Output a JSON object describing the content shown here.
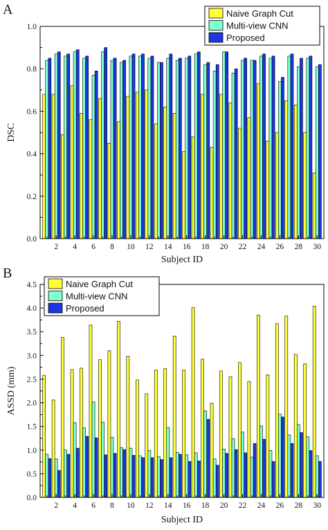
{
  "chart_data": [
    {
      "type": "bar",
      "panel_label": "A",
      "xlabel": "Subject ID",
      "ylabel": "DSC",
      "ylim": [
        0,
        1.0
      ],
      "yticks": [
        0.0,
        0.2,
        0.4,
        0.6,
        0.8,
        1.0
      ],
      "yticks_labels": [
        "0.0",
        "0.2",
        "0.4",
        "0.6",
        "0.8",
        "1.0"
      ],
      "categories": [
        1,
        2,
        3,
        4,
        5,
        6,
        7,
        8,
        9,
        10,
        11,
        12,
        13,
        14,
        15,
        16,
        17,
        18,
        19,
        20,
        21,
        22,
        23,
        24,
        25,
        26,
        27,
        28,
        29,
        30
      ],
      "xtick_labels": [
        "2",
        "4",
        "6",
        "8",
        "10",
        "12",
        "14",
        "16",
        "18",
        "20",
        "22",
        "24",
        "26",
        "28",
        "30"
      ],
      "legend_position": "top-right",
      "series": [
        {
          "name": "Naive Graph Cut",
          "color": "#ffff33",
          "values": [
            0.68,
            0.68,
            0.49,
            0.72,
            0.59,
            0.56,
            0.66,
            0.45,
            0.55,
            0.67,
            0.69,
            0.7,
            0.54,
            0.62,
            0.59,
            0.41,
            0.48,
            0.68,
            0.43,
            0.68,
            0.64,
            0.52,
            0.57,
            0.73,
            0.46,
            0.5,
            0.65,
            0.63,
            0.5,
            0.31
          ]
        },
        {
          "name": "Multi-view CNN",
          "color": "#7fffd4",
          "values": [
            0.84,
            0.87,
            0.86,
            0.88,
            0.85,
            0.77,
            0.88,
            0.84,
            0.83,
            0.86,
            0.86,
            0.85,
            0.83,
            0.85,
            0.84,
            0.85,
            0.87,
            0.82,
            0.79,
            0.88,
            0.78,
            0.84,
            0.84,
            0.86,
            0.85,
            0.74,
            0.86,
            0.81,
            0.85,
            0.81
          ]
        },
        {
          "name": "Proposed",
          "color": "#1a37e0",
          "values": [
            0.85,
            0.88,
            0.87,
            0.89,
            0.86,
            0.79,
            0.9,
            0.85,
            0.84,
            0.87,
            0.87,
            0.86,
            0.83,
            0.87,
            0.85,
            0.86,
            0.88,
            0.83,
            0.82,
            0.88,
            0.8,
            0.85,
            0.84,
            0.87,
            0.86,
            0.76,
            0.87,
            0.85,
            0.86,
            0.82
          ]
        }
      ]
    },
    {
      "type": "bar",
      "panel_label": "B",
      "xlabel": "Subject ID",
      "ylabel": "ASSD (mm)",
      "ylim": [
        0,
        4.5
      ],
      "yticks": [
        0.0,
        0.5,
        1.0,
        1.5,
        2.0,
        2.5,
        3.0,
        3.5,
        4.0,
        4.5
      ],
      "yticks_labels": [
        "0.0",
        "0.5",
        "1.0",
        "1.5",
        "2.0",
        "2.5",
        "3.0",
        "3.5",
        "4.0",
        "4.5"
      ],
      "categories": [
        1,
        2,
        3,
        4,
        5,
        6,
        7,
        8,
        9,
        10,
        11,
        12,
        13,
        14,
        15,
        16,
        17,
        18,
        19,
        20,
        21,
        22,
        23,
        24,
        25,
        26,
        27,
        28,
        29,
        30
      ],
      "xtick_labels": [
        "2",
        "4",
        "6",
        "8",
        "10",
        "12",
        "14",
        "16",
        "18",
        "20",
        "22",
        "24",
        "26",
        "28",
        "30"
      ],
      "legend_position": "top-left",
      "series": [
        {
          "name": "Naive Graph Cut",
          "color": "#ffff33",
          "values": [
            2.58,
            2.06,
            3.38,
            2.7,
            2.73,
            3.64,
            2.91,
            3.1,
            3.72,
            2.98,
            2.48,
            2.19,
            2.69,
            2.72,
            3.41,
            2.69,
            4.01,
            2.92,
            1.99,
            2.67,
            2.55,
            2.85,
            2.45,
            3.85,
            2.59,
            3.67,
            3.83,
            3.02,
            2.82,
            4.04
          ]
        },
        {
          "name": "Multi-view CNN",
          "color": "#7fffd4",
          "values": [
            0.91,
            0.81,
            1.0,
            1.58,
            1.47,
            2.02,
            1.59,
            1.27,
            1.05,
            1.04,
            0.88,
            0.99,
            0.86,
            1.48,
            0.95,
            0.9,
            0.94,
            1.83,
            0.81,
            1.02,
            1.24,
            1.38,
            0.85,
            1.51,
            0.99,
            1.76,
            1.32,
            1.54,
            1.28,
            0.88
          ]
        },
        {
          "name": "Proposed",
          "color": "#1a37e0",
          "values": [
            0.82,
            0.57,
            0.91,
            1.04,
            1.29,
            1.26,
            0.9,
            0.93,
            1.01,
            0.89,
            0.84,
            0.84,
            0.8,
            0.84,
            0.91,
            0.76,
            0.77,
            1.65,
            0.68,
            0.93,
            1.01,
            0.94,
            1.14,
            1.23,
            0.76,
            1.7,
            1.14,
            1.37,
            0.99,
            0.76
          ]
        }
      ]
    }
  ]
}
